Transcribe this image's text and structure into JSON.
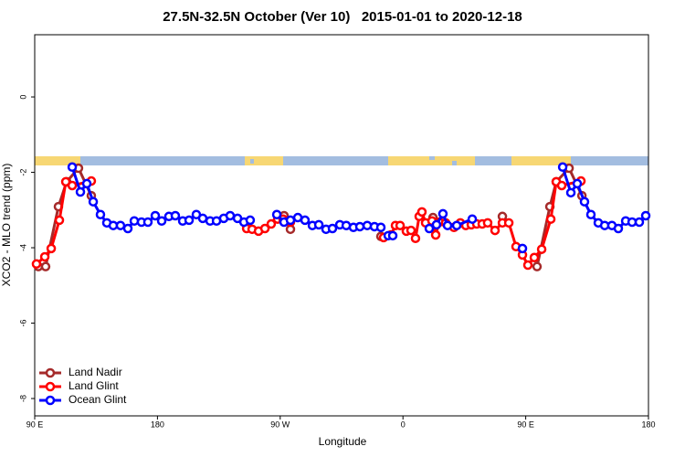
{
  "chart_data": {
    "type": "line",
    "title": "27.5N-32.5N October (Ver 10)   2015-01-01 to 2020-12-18",
    "xlabel": "Longitude",
    "ylabel": "XCO2 - MLO trend (ppm)",
    "xlim": [
      90,
      540
    ],
    "ylim": [
      -8.46,
      1.65
    ],
    "xticks": [
      {
        "value": 90,
        "label": "90 E"
      },
      180,
      {
        "value": 270,
        "label": "90 W"
      },
      {
        "value": 360,
        "label": "0"
      },
      {
        "value": 450,
        "label": "90 E"
      },
      {
        "value": 540,
        "label": "180"
      }
    ],
    "yticks": [
      0,
      -2,
      -4,
      -6,
      -8
    ],
    "legend": "bottom-left",
    "series": [
      {
        "name": "Land Nadir",
        "color": "#a52a2a",
        "x": [
          92.7,
          98.0,
          107.4,
          113.4,
          122.1,
          131.5,
          null,
          272.8,
          277.5,
          null,
          343.8,
          null,
          382.0,
          null,
          432.9,
          null,
          458.3,
          467.7,
          472.4,
          481.8,
          491.2
        ],
        "values": [
          -4.5,
          -4.5,
          -2.91,
          -2.25,
          -1.89,
          -2.62,
          null,
          -3.15,
          -3.51,
          null,
          -3.7,
          null,
          -3.2,
          null,
          -3.17,
          null,
          -4.5,
          -2.91,
          -2.25,
          -1.89,
          -2.62
        ]
      },
      {
        "name": "Land Glint",
        "color": "#ff0000",
        "x": [
          91.3,
          97.4,
          102.1,
          108.1,
          112.8,
          117.5,
          131.5,
          null,
          245.4,
          249.4,
          254.1,
          258.8,
          263.4,
          268.1,
          272.1,
          277.5,
          null,
          345.8,
          351.2,
          354.5,
          357.9,
          362.5,
          365.9,
          369.2,
          371.9,
          373.9,
          376.6,
          381.3,
          384.0,
          386.6,
          391.3,
          397.4,
          402.1,
          406.1,
          410.1,
          414.1,
          418.1,
          422.1,
          427.5,
          432.9,
          437.6,
          442.9,
          447.6,
          451.6,
          456.3,
          461.7,
          468.4,
          472.4,
          476.4,
          490.5
        ],
        "values": [
          -4.43,
          -4.24,
          -4.02,
          -3.27,
          -2.25,
          -2.35,
          -2.23,
          null,
          -3.49,
          -3.51,
          -3.56,
          -3.49,
          -3.37,
          -3.24,
          -3.24,
          -3.32,
          null,
          -3.73,
          -3.66,
          -3.41,
          -3.41,
          -3.56,
          -3.54,
          -3.75,
          -3.17,
          -3.05,
          -3.34,
          -3.29,
          -3.66,
          -3.32,
          -3.34,
          -3.46,
          -3.34,
          -3.41,
          -3.39,
          -3.37,
          -3.37,
          -3.34,
          -3.54,
          -3.34,
          -3.34,
          -3.97,
          -4.19,
          -4.46,
          -4.26,
          -4.04,
          -3.24,
          -2.25,
          -2.35,
          -2.23
        ]
      },
      {
        "name": "Ocean Glint",
        "color": "#0000ff",
        "x": [
          117.5,
          123.5,
          128.2,
          132.9,
          138.2,
          142.9,
          147.6,
          152.9,
          158.3,
          163.0,
          168.3,
          173.0,
          178.4,
          183.1,
          188.4,
          193.1,
          198.5,
          203.2,
          208.5,
          213.2,
          218.6,
          223.3,
          228.6,
          233.3,
          238.7,
          243.4,
          248.0,
          null,
          267.5,
          272.8,
          277.5,
          282.9,
          288.2,
          293.6,
          298.3,
          303.6,
          308.3,
          313.7,
          318.4,
          323.7,
          328.4,
          333.8,
          339.1,
          343.8,
          null,
          349.2,
          352.5,
          null,
          379.3,
          384.6,
          389.3,
          392.7,
          399.4,
          410.8,
          null,
          447.6,
          null,
          477.1,
          483.1,
          487.8,
          493.1,
          497.8,
          503.2,
          507.9,
          513.2,
          517.9,
          523.3,
          528.0,
          533.3,
          538.0
        ],
        "values": [
          -1.86,
          -2.52,
          -2.3,
          -2.78,
          -3.12,
          -3.34,
          -3.41,
          -3.41,
          -3.49,
          -3.29,
          -3.32,
          -3.32,
          -3.15,
          -3.29,
          -3.17,
          -3.15,
          -3.29,
          -3.27,
          -3.12,
          -3.22,
          -3.29,
          -3.29,
          -3.22,
          -3.15,
          -3.22,
          -3.32,
          -3.27,
          null,
          -3.12,
          -3.32,
          -3.27,
          -3.2,
          -3.27,
          -3.41,
          -3.39,
          -3.51,
          -3.49,
          -3.39,
          -3.41,
          -3.46,
          -3.44,
          -3.41,
          -3.44,
          -3.46,
          null,
          -3.68,
          -3.68,
          null,
          -3.49,
          -3.39,
          -3.1,
          -3.41,
          -3.41,
          -3.24,
          null,
          -4.02,
          null,
          -1.86,
          -2.54,
          -2.3,
          -2.78,
          -3.12,
          -3.34,
          -3.41,
          -3.41,
          -3.49,
          -3.29,
          -3.32,
          -3.32,
          -3.15
        ]
      }
    ]
  }
}
